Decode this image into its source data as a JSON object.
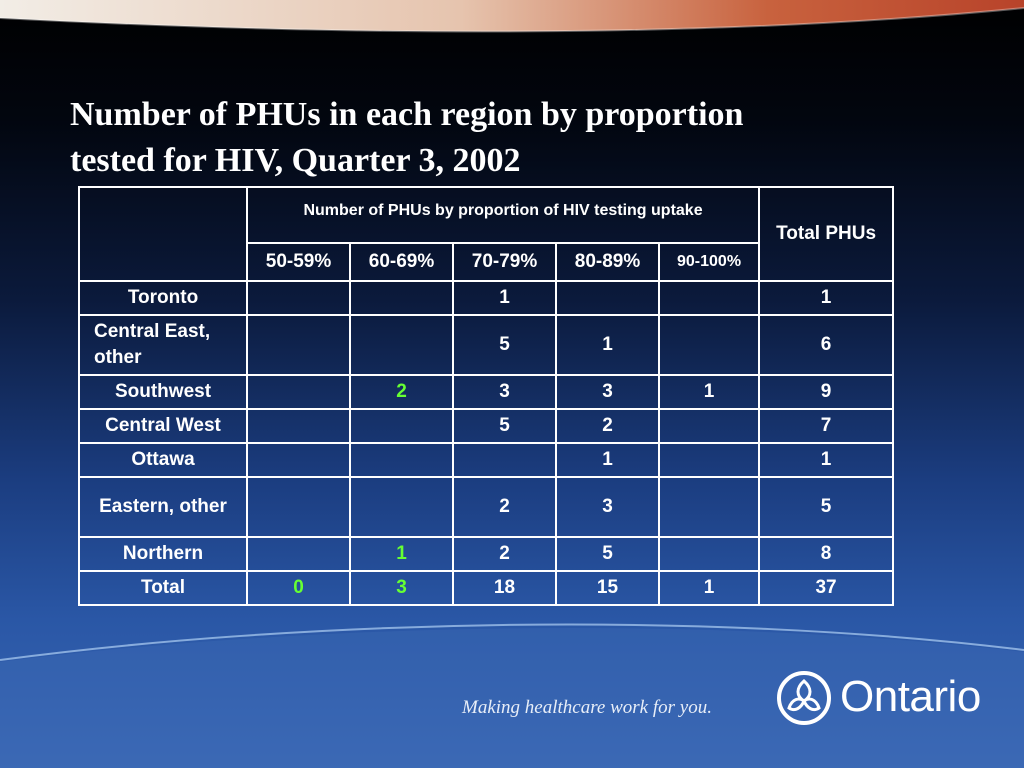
{
  "title": {
    "line1": "Number of PHUs in each region by proportion",
    "line2": "tested for HIV, Quarter 3, 2002"
  },
  "table": {
    "group_header": "Number of PHUs by proportion of HIV testing uptake",
    "total_header": "Total PHUs",
    "columns": [
      "50-59%",
      "60-69%",
      "70-79%",
      "80-89%",
      "90-100%"
    ],
    "rows": [
      {
        "region": "Toronto",
        "values": [
          "",
          "",
          "1",
          "",
          ""
        ],
        "total": "1"
      },
      {
        "region": "Central East, other",
        "values": [
          "",
          "",
          "5",
          "1",
          ""
        ],
        "total": "6"
      },
      {
        "region": "Southwest",
        "values": [
          "",
          "2",
          "3",
          "3",
          "1"
        ],
        "total": "9"
      },
      {
        "region": "Central West",
        "values": [
          "",
          "",
          "5",
          "2",
          ""
        ],
        "total": "7"
      },
      {
        "region": "Ottawa",
        "values": [
          "",
          "",
          "",
          "1",
          ""
        ],
        "total": "1"
      },
      {
        "region": "Eastern, other",
        "values": [
          "",
          "",
          "2",
          "3",
          ""
        ],
        "total": "5"
      },
      {
        "region": "Northern",
        "values": [
          "",
          "1",
          "2",
          "5",
          ""
        ],
        "total": "8"
      },
      {
        "region": "Total",
        "values": [
          "0",
          "3",
          "18",
          "15",
          "1"
        ],
        "total": "37"
      }
    ]
  },
  "footer": {
    "tagline": "Making healthcare work for you.",
    "brand": "Ontario"
  },
  "colors": {
    "highlight": "#66ff33",
    "text": "#ffffff",
    "band": "#c8623e"
  }
}
